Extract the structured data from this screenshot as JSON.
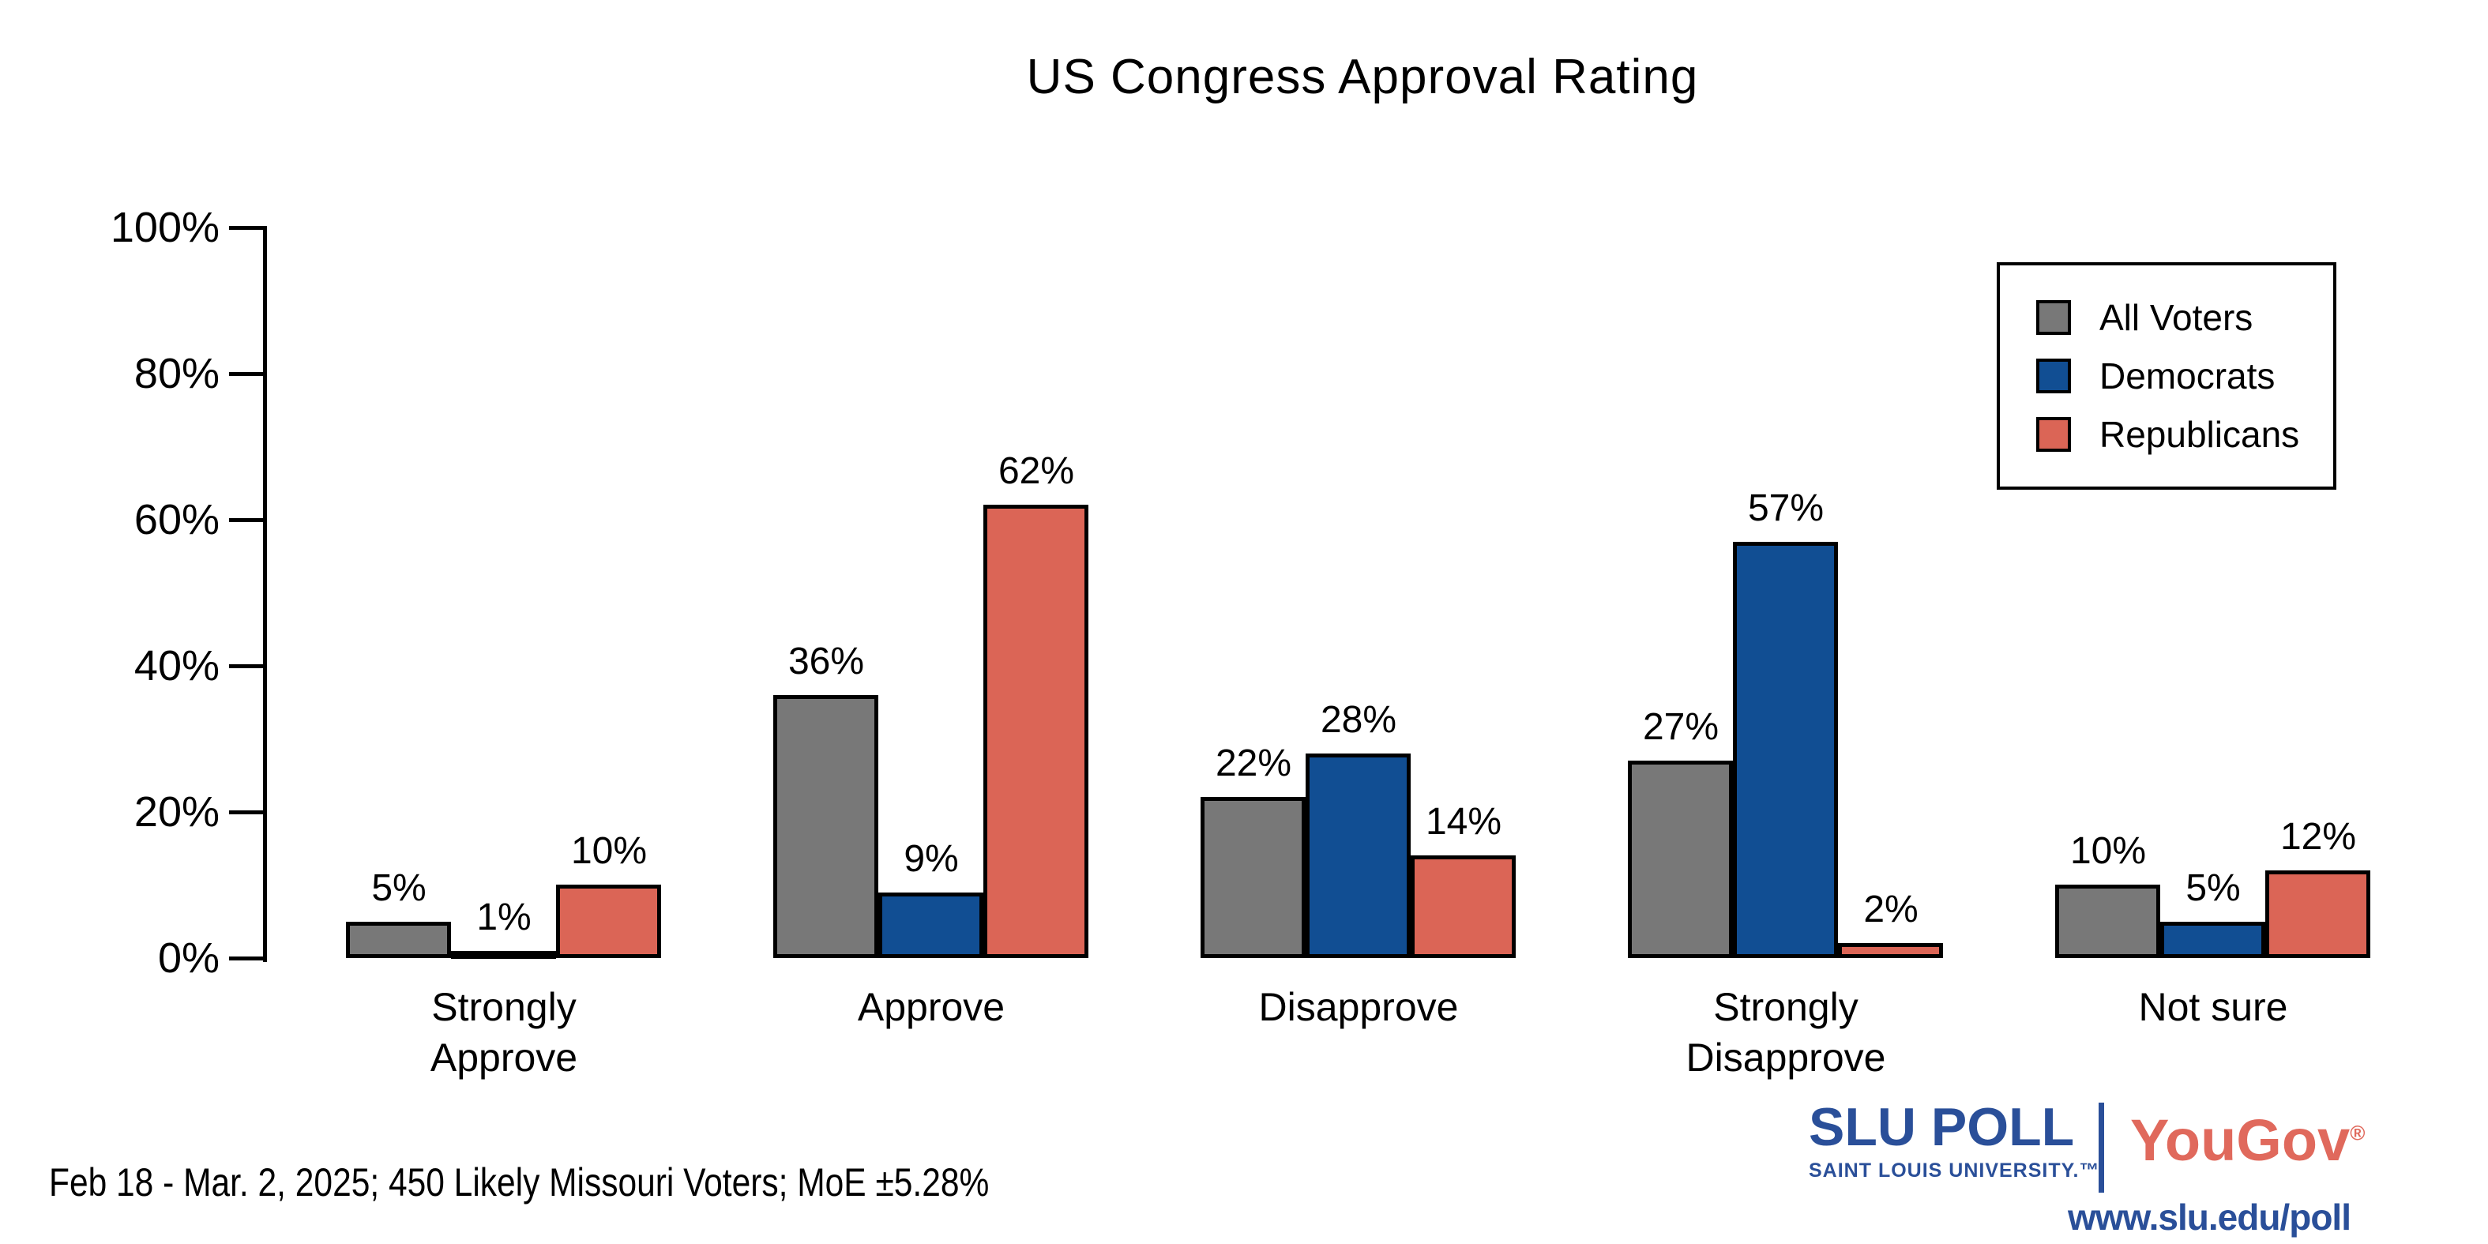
{
  "title": "US Congress Approval Rating",
  "chart_data": {
    "type": "bar",
    "title": "US Congress Approval Rating",
    "categories": [
      "Strongly\nApprove",
      "Approve",
      "Disapprove",
      "Strongly\nDisapprove",
      "Not sure"
    ],
    "series": [
      {
        "name": "All Voters",
        "color": "#787878",
        "values": [
          5,
          36,
          22,
          27,
          10
        ]
      },
      {
        "name": "Democrats",
        "color": "#114e93",
        "values": [
          1,
          9,
          28,
          57,
          5
        ]
      },
      {
        "name": "Republicans",
        "color": "#db6556",
        "values": [
          10,
          62,
          14,
          2,
          12
        ]
      }
    ],
    "value_suffix": "%",
    "xlabel": "",
    "ylabel": "",
    "ylim": [
      0,
      100
    ],
    "yticks": [
      "0%",
      "20%",
      "40%",
      "60%",
      "80%",
      "100%"
    ],
    "grid": false,
    "legend_position": "upper right",
    "bar_outline_color": "#000000"
  },
  "footer": {
    "note": "Feb 18 - Mar. 2, 2025; 450 Likely Missouri Voters; MoE ±5.28%"
  },
  "branding": {
    "slu_wordmark": "SLU POLL",
    "slu_subtitle": "SAINT LOUIS UNIVERSITY.™",
    "yougov": "YouGov",
    "yougov_reg": "®",
    "url": "www.slu.edu/poll",
    "slu_blue": "#2a4f99",
    "yougov_red": "#e0695c"
  }
}
